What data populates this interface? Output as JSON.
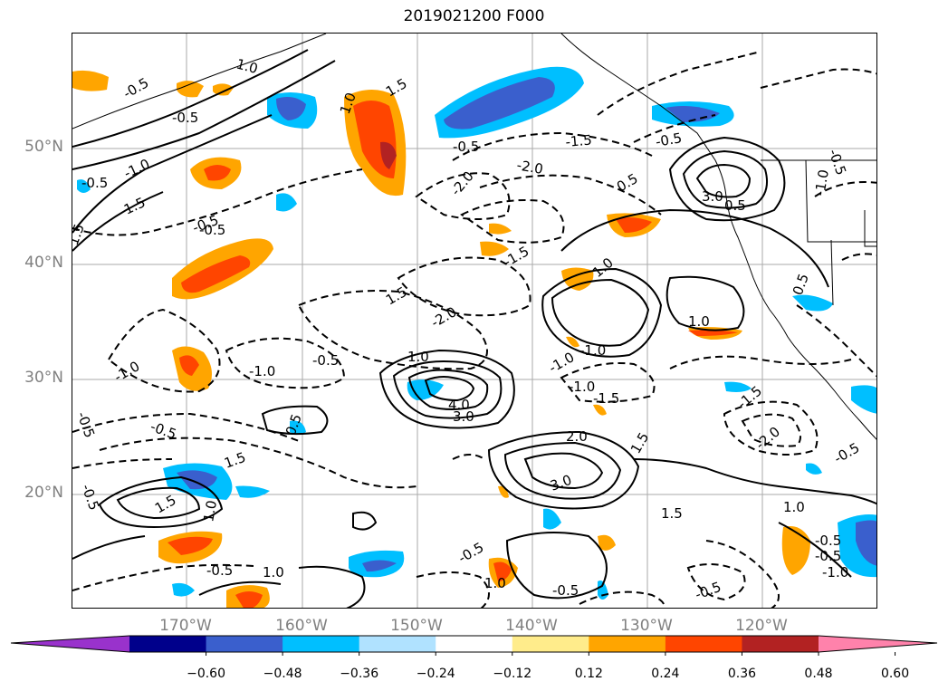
{
  "title": "2019021200 F000",
  "map": {
    "lat_labels": [
      "50°N",
      "40°N",
      "30°N",
      "20°N"
    ],
    "lon_labels": [
      "170°W",
      "160°W",
      "150°W",
      "140°W",
      "130°W",
      "120°W"
    ]
  },
  "contour_labels": [
    "-0.5",
    "1.5",
    "-0.5",
    "1.0",
    "-1.0",
    "1.5",
    "-0.5",
    "1.0",
    "1.5",
    "-0.5",
    "-2.0",
    "-1.5",
    "-2.0",
    "-0.5",
    "0.5",
    "3.0",
    "0.5",
    "-1.0",
    "1.0",
    "1.5",
    "-0.5",
    "-1.5",
    "-2.0",
    "-1.0",
    "-0.5",
    "1.0",
    "-1.0",
    "1.0",
    "4.0",
    "3.0",
    "-1.5",
    "2.0",
    "3.0",
    "-1.0",
    "1.5",
    "-0.5",
    "1.5",
    "1.5",
    "-0.5",
    "-0.5",
    "1.0",
    "-0.5",
    "1.0",
    "1.0",
    "-0.5",
    "-1.5",
    "-2.0",
    "-0.5",
    "1.0",
    "-0.5",
    "-0.5",
    "-1.0",
    "-1.0",
    "-0.5",
    "0.5",
    "-0.5",
    "1.5",
    "-1.0",
    "0.5",
    "-0.5",
    "-0.5"
  ],
  "colorbar": {
    "colors": [
      "#9932cc",
      "#00008b",
      "#3a5fcd",
      "#00bfff",
      "#b0e2ff",
      "#ffffff",
      "#ffec8b",
      "#ffa500",
      "#ff4500",
      "#b22222",
      "#ff82ab"
    ],
    "ticks": [
      "−0.60",
      "−0.48",
      "−0.36",
      "−0.24",
      "−0.12",
      "0.12",
      "0.24",
      "0.36",
      "0.48",
      "0.60"
    ]
  }
}
